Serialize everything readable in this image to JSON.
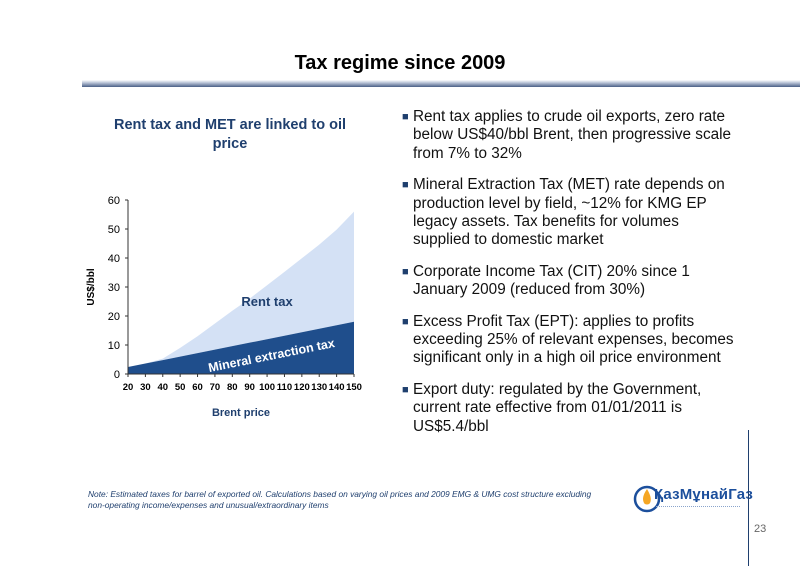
{
  "slide": {
    "title": "Tax regime since 2009",
    "page_number": "23",
    "note": "Note: Estimated taxes for barrel of exported oil. Calculations based on varying oil prices and 2009 EMG & UMG cost structure excluding non-operating income/expenses and unusual/extraordinary items"
  },
  "chart_title": "Rent tax and MET are linked to oil price",
  "chart_data": {
    "type": "area",
    "title": "Rent tax and MET are linked to oil price",
    "xlabel": "Brent price",
    "ylabel": "US$/bbl",
    "x": [
      20,
      30,
      40,
      50,
      60,
      70,
      80,
      90,
      100,
      110,
      120,
      130,
      140,
      150
    ],
    "ylim": [
      0,
      60
    ],
    "yticks": [
      0,
      10,
      20,
      30,
      40,
      50,
      60
    ],
    "grid": false,
    "series": [
      {
        "name": "Mineral extraction tax",
        "values": [
          2.4,
          3.6,
          4.8,
          6.0,
          7.2,
          8.4,
          9.6,
          10.8,
          12.0,
          13.2,
          14.4,
          15.6,
          16.8,
          18.0
        ],
        "color": "#1f4e8c"
      },
      {
        "name": "Rent tax",
        "values": [
          0,
          0,
          0.5,
          3.0,
          5.8,
          9.0,
          12.2,
          15.2,
          18.6,
          22.0,
          25.5,
          29.0,
          33.0,
          38.0
        ],
        "color": "#d4e1f5"
      }
    ],
    "annotations": [
      "Rent tax",
      "Mineral extraction tax"
    ]
  },
  "bullets": [
    "Rent tax applies to crude oil exports, zero rate below US$40/bbl Brent, then progressive scale from 7% to 32%",
    "Mineral Extraction Tax (MET) rate depends on production level by field, ~12% for KMG EP legacy assets. Tax benefits for volumes supplied to domestic market",
    "Corporate Income Tax (CIT) 20% since 1 January 2009 (reduced from 30%)",
    "Excess Profit Tax (EPT): applies to profits exceeding 25% of relevant expenses, becomes significant only in a high oil price environment",
    "Export duty: regulated by the Government, current rate effective from 01/01/2011 is US$5.4/bbl"
  ],
  "logo": {
    "text": "ҚазМұнайГаз",
    "icon": "drop-flame-logo-icon",
    "color": "#1c4f9c"
  },
  "bullet_icon": "square-bullet-icon"
}
